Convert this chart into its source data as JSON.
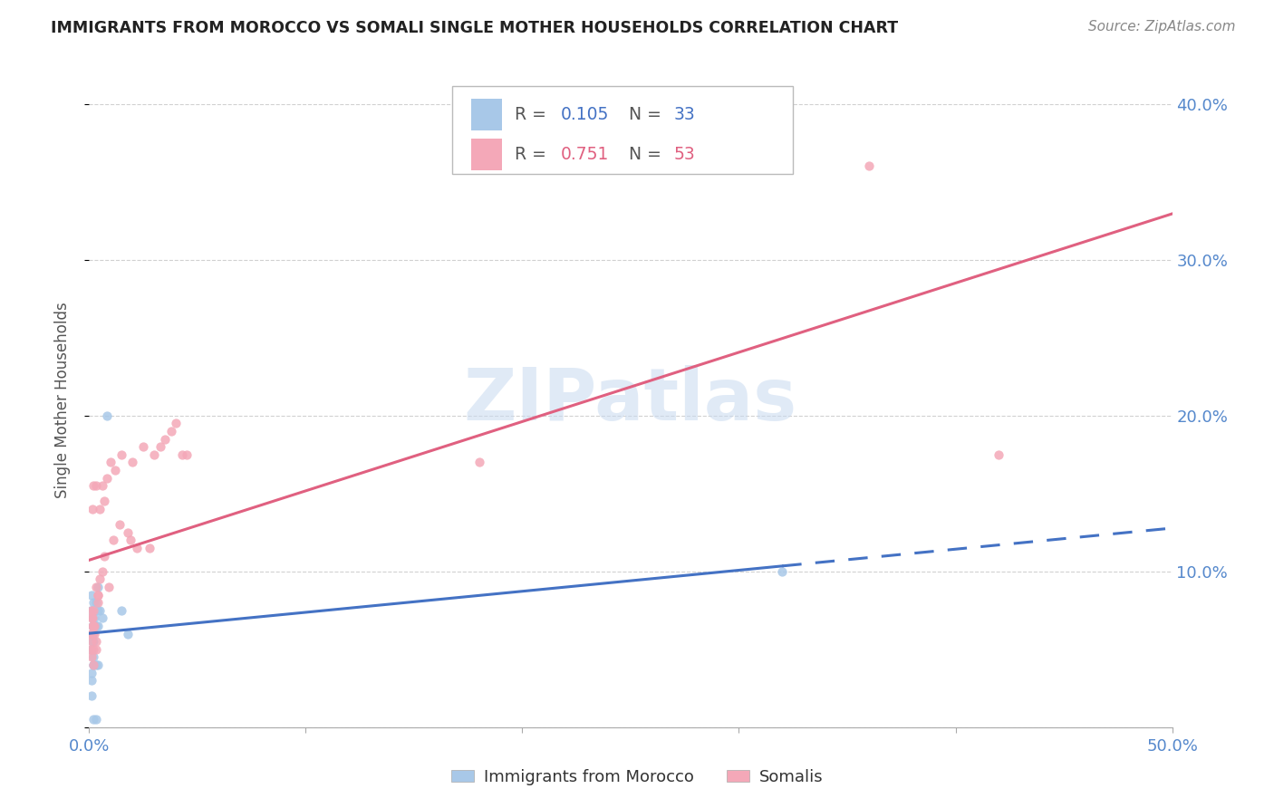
{
  "title": "IMMIGRANTS FROM MOROCCO VS SOMALI SINGLE MOTHER HOUSEHOLDS CORRELATION CHART",
  "source": "Source: ZipAtlas.com",
  "ylabel": "Single Mother Households",
  "xlim": [
    0.0,
    0.5
  ],
  "ylim": [
    0.0,
    0.42
  ],
  "morocco_R": 0.105,
  "morocco_N": 33,
  "somali_R": 0.751,
  "somali_N": 53,
  "morocco_color": "#a8c8e8",
  "somali_color": "#f4a8b8",
  "morocco_line_color": "#4472c4",
  "somali_line_color": "#e06080",
  "grid_color": "#cccccc",
  "tick_color": "#5588cc",
  "morocco_scatter_x": [
    0.0005,
    0.001,
    0.0015,
    0.001,
    0.002,
    0.001,
    0.0015,
    0.002,
    0.0025,
    0.001,
    0.002,
    0.003,
    0.004,
    0.003,
    0.002,
    0.0015,
    0.001,
    0.004,
    0.002,
    0.003,
    0.004,
    0.005,
    0.006,
    0.008,
    0.0015,
    0.002,
    0.003,
    0.015,
    0.018,
    0.004,
    0.001,
    0.002,
    0.32
  ],
  "morocco_scatter_y": [
    0.075,
    0.085,
    0.07,
    0.03,
    0.08,
    0.06,
    0.065,
    0.055,
    0.07,
    0.05,
    0.045,
    0.04,
    0.075,
    0.08,
    0.065,
    0.06,
    0.02,
    0.065,
    0.005,
    0.005,
    0.04,
    0.075,
    0.07,
    0.2,
    0.055,
    0.04,
    0.065,
    0.075,
    0.06,
    0.09,
    0.035,
    0.04,
    0.1
  ],
  "somali_scatter_x": [
    0.0005,
    0.001,
    0.0015,
    0.0005,
    0.002,
    0.001,
    0.0015,
    0.002,
    0.0025,
    0.001,
    0.002,
    0.003,
    0.003,
    0.0025,
    0.002,
    0.0015,
    0.001,
    0.004,
    0.003,
    0.004,
    0.005,
    0.006,
    0.007,
    0.004,
    0.0015,
    0.002,
    0.003,
    0.005,
    0.007,
    0.008,
    0.01,
    0.006,
    0.012,
    0.011,
    0.009,
    0.015,
    0.014,
    0.018,
    0.02,
    0.019,
    0.022,
    0.025,
    0.03,
    0.028,
    0.033,
    0.035,
    0.038,
    0.04,
    0.043,
    0.045,
    0.18,
    0.36,
    0.42
  ],
  "somali_scatter_y": [
    0.06,
    0.07,
    0.065,
    0.05,
    0.075,
    0.055,
    0.06,
    0.05,
    0.065,
    0.045,
    0.04,
    0.05,
    0.055,
    0.06,
    0.065,
    0.07,
    0.075,
    0.08,
    0.09,
    0.085,
    0.095,
    0.1,
    0.11,
    0.085,
    0.14,
    0.155,
    0.155,
    0.14,
    0.145,
    0.16,
    0.17,
    0.155,
    0.165,
    0.12,
    0.09,
    0.175,
    0.13,
    0.125,
    0.17,
    0.12,
    0.115,
    0.18,
    0.175,
    0.115,
    0.18,
    0.185,
    0.19,
    0.195,
    0.175,
    0.175,
    0.17,
    0.36,
    0.175
  ]
}
